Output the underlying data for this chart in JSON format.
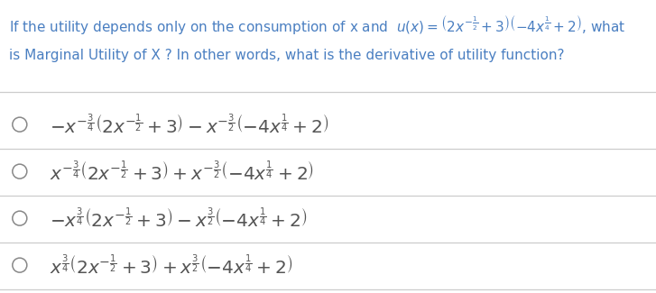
{
  "background_color": "#ffffff",
  "question_color": "#4a7fc1",
  "option_color": "#555555",
  "divider_color": "#cccccc",
  "question_fontsize": 11.0,
  "option_fontsize": 14.5,
  "circle_edgecolor": "#888888",
  "question_line1": "If the utility depends only on the consumption of x and  $u\\left(x\\right) = \\left(2x^{-\\frac{1}{2}}+3\\right)\\left(-4x^{\\frac{1}{4}}+2\\right)$, what",
  "question_line2": "is Marginal Utility of X ? In other words, what is the derivative of utility function?",
  "option1": "$-x^{-\\frac{3}{4}}\\left(2x^{-\\frac{1}{2}}+3\\right)-x^{-\\frac{3}{2}}\\left(-4x^{\\frac{1}{4}}+2\\right)$",
  "option2": "$x^{-\\frac{3}{4}}\\left(2x^{-\\frac{1}{2}}+3\\right)+x^{-\\frac{3}{2}}\\left(-4x^{\\frac{1}{4}}+2\\right)$",
  "option3": "$-x^{\\frac{3}{4}}\\left(2x^{-\\frac{1}{2}}+3\\right)-x^{\\frac{3}{2}}\\left(-4x^{\\frac{1}{4}}+2\\right)$",
  "option4": "$x^{\\frac{3}{4}}\\left(2x^{-\\frac{1}{2}}+3\\right)+x^{\\frac{3}{2}}\\left(-4x^{\\frac{1}{4}}+2\\right)$"
}
